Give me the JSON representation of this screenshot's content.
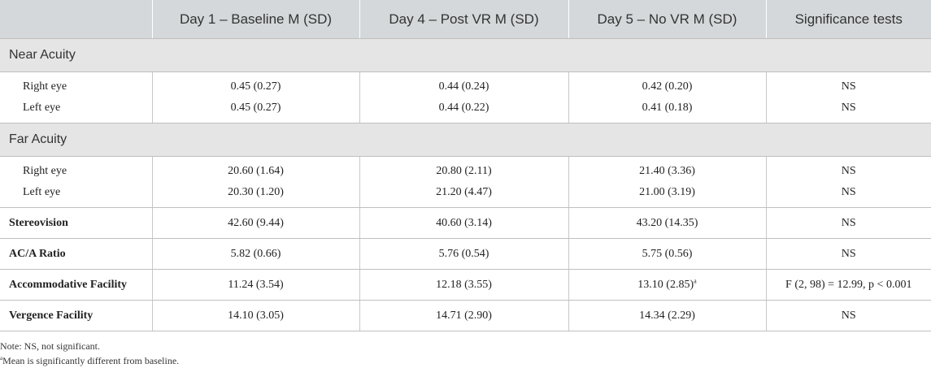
{
  "headers": [
    "",
    "Day 1 – Baseline M (SD)",
    "Day 4 – Post VR M (SD)",
    "Day 5 – No VR M (SD)",
    "Significance tests"
  ],
  "near_acuity": {
    "title": "Near Acuity",
    "rows": [
      {
        "label": "Right eye",
        "d1": "0.45 (0.27)",
        "d4": "0.44 (0.24)",
        "d5": "0.42 (0.20)",
        "sig": "NS"
      },
      {
        "label": "Left eye",
        "d1": "0.45 (0.27)",
        "d4": "0.44 (0.22)",
        "d5": "0.41 (0.18)",
        "sig": "NS"
      }
    ]
  },
  "far_acuity": {
    "title": "Far Acuity",
    "rows": [
      {
        "label": "Right eye",
        "d1": "20.60 (1.64)",
        "d4": "20.80 (2.11)",
        "d5": "21.40 (3.36)",
        "sig": "NS"
      },
      {
        "label": "Left eye",
        "d1": "20.30 (1.20)",
        "d4": "21.20 (4.47)",
        "d5": "21.00 (3.19)",
        "sig": "NS"
      }
    ]
  },
  "measures": [
    {
      "label": "Stereovision",
      "d1": "42.60 (9.44)",
      "d4": "40.60 (3.14)",
      "d5": "43.20 (14.35)",
      "d5_sup": "",
      "sig": "NS"
    },
    {
      "label": "AC/A Ratio",
      "d1": "5.82 (0.66)",
      "d4": "5.76 (0.54)",
      "d5": "5.75 (0.56)",
      "d5_sup": "",
      "sig": "NS"
    },
    {
      "label": "Accommodative Facility",
      "d1": "11.24 (3.54)",
      "d4": "12.18 (3.55)",
      "d5": "13.10 (2.85)",
      "d5_sup": "a",
      "sig": "F (2, 98) = 12.99, p < 0.001"
    },
    {
      "label": "Vergence Facility",
      "d1": "14.10 (3.05)",
      "d4": "14.71 (2.90)",
      "d5": "14.34 (2.29)",
      "d5_sup": "",
      "sig": "NS"
    }
  ],
  "notes": {
    "note": "Note: NS, not significant.",
    "footnote_marker": "a",
    "footnote_text": "Mean is significantly different from baseline."
  }
}
